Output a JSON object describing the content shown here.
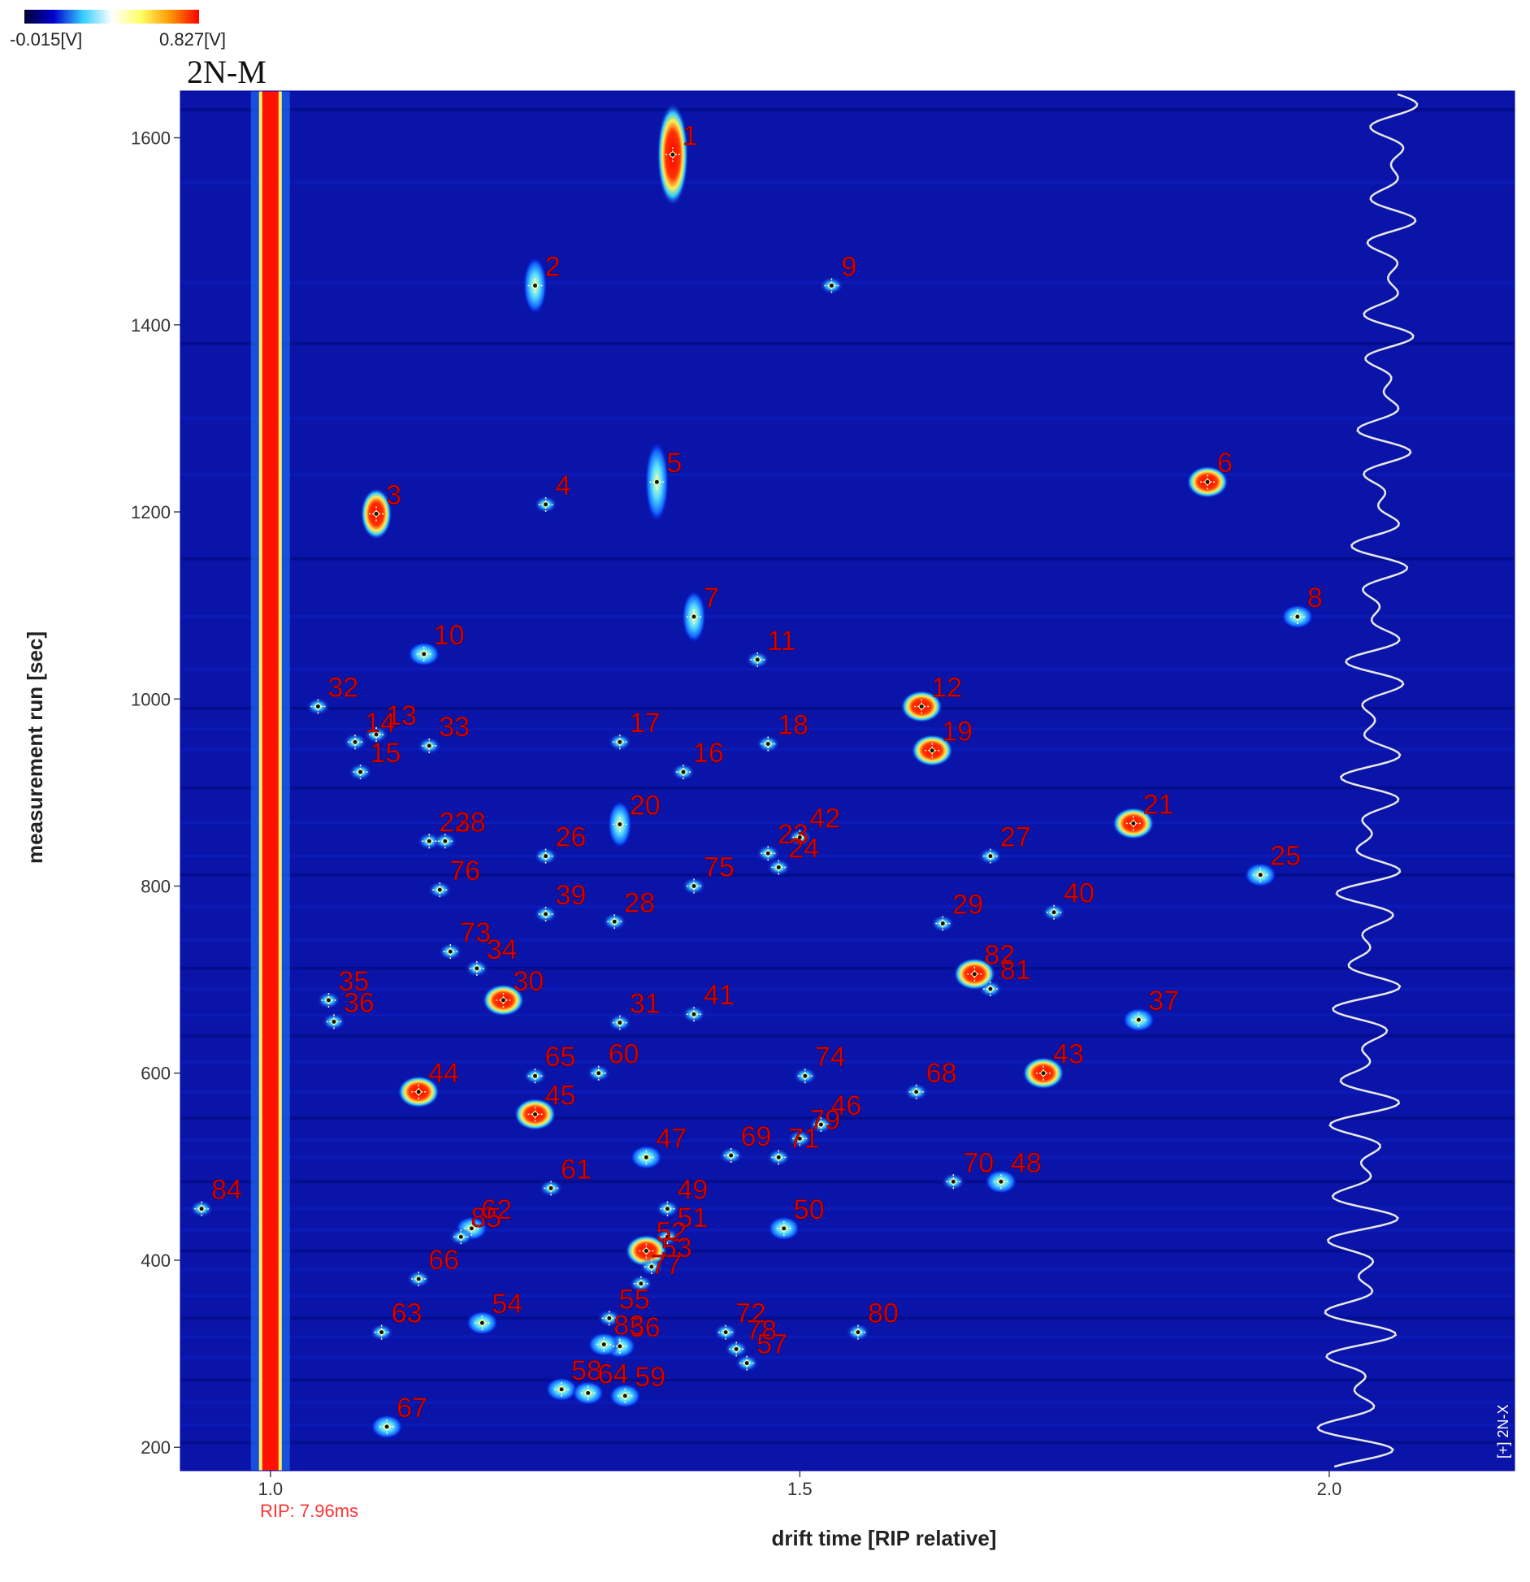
{
  "chart_data": {
    "type": "heatmap",
    "panel_label": "2N-M",
    "colorbar": {
      "min_label": "-0.015[V]",
      "max_label": "0.827[V]",
      "colors": [
        "#000033",
        "#0000cc",
        "#33ccff",
        "#ffffff",
        "#ffff66",
        "#ff9900",
        "#ff0000"
      ]
    },
    "xlabel": "drift time [RIP relative]",
    "ylabel": "measurement run [sec]",
    "rip_label": "RIP: 7.96ms",
    "spectrum_label": "[+] 2N-X",
    "xlim": [
      0.915,
      2.175
    ],
    "ylim": [
      175,
      1650
    ],
    "x_ticks": [
      {
        "value": 1.0,
        "label": "1.0"
      },
      {
        "value": 1.5,
        "label": "1.5"
      },
      {
        "value": 2.0,
        "label": "2.0"
      }
    ],
    "y_ticks": [
      {
        "value": 200,
        "label": "200"
      },
      {
        "value": 400,
        "label": "400"
      },
      {
        "value": 600,
        "label": "600"
      },
      {
        "value": 800,
        "label": "800"
      },
      {
        "value": 1000,
        "label": "1000"
      },
      {
        "value": 1200,
        "label": "1200"
      },
      {
        "value": 1400,
        "label": "1400"
      },
      {
        "value": 1600,
        "label": "1600"
      }
    ],
    "peaks": [
      {
        "id": "1",
        "x": 1.38,
        "y": 1582
      },
      {
        "id": "2",
        "x": 1.25,
        "y": 1442
      },
      {
        "id": "3",
        "x": 1.1,
        "y": 1198
      },
      {
        "id": "4",
        "x": 1.26,
        "y": 1208
      },
      {
        "id": "5",
        "x": 1.365,
        "y": 1232
      },
      {
        "id": "6",
        "x": 1.885,
        "y": 1232
      },
      {
        "id": "7",
        "x": 1.4,
        "y": 1088
      },
      {
        "id": "8",
        "x": 1.97,
        "y": 1088
      },
      {
        "id": "9",
        "x": 1.53,
        "y": 1442
      },
      {
        "id": "10",
        "x": 1.145,
        "y": 1048
      },
      {
        "id": "11",
        "x": 1.46,
        "y": 1042
      },
      {
        "id": "12",
        "x": 1.615,
        "y": 992
      },
      {
        "id": "13",
        "x": 1.1,
        "y": 962
      },
      {
        "id": "14",
        "x": 1.08,
        "y": 954
      },
      {
        "id": "15",
        "x": 1.085,
        "y": 922
      },
      {
        "id": "16",
        "x": 1.39,
        "y": 922
      },
      {
        "id": "17",
        "x": 1.33,
        "y": 954
      },
      {
        "id": "18",
        "x": 1.47,
        "y": 952
      },
      {
        "id": "19",
        "x": 1.625,
        "y": 945
      },
      {
        "id": "20",
        "x": 1.33,
        "y": 866
      },
      {
        "id": "21",
        "x": 1.815,
        "y": 867
      },
      {
        "id": "22",
        "x": 1.15,
        "y": 848
      },
      {
        "id": "23",
        "x": 1.47,
        "y": 835
      },
      {
        "id": "24",
        "x": 1.48,
        "y": 820
      },
      {
        "id": "25",
        "x": 1.935,
        "y": 812
      },
      {
        "id": "26",
        "x": 1.26,
        "y": 832
      },
      {
        "id": "27",
        "x": 1.68,
        "y": 832
      },
      {
        "id": "28",
        "x": 1.325,
        "y": 762
      },
      {
        "id": "29",
        "x": 1.635,
        "y": 760
      },
      {
        "id": "30",
        "x": 1.22,
        "y": 678
      },
      {
        "id": "31",
        "x": 1.33,
        "y": 654
      },
      {
        "id": "32",
        "x": 1.045,
        "y": 992
      },
      {
        "id": "33",
        "x": 1.15,
        "y": 950
      },
      {
        "id": "34",
        "x": 1.195,
        "y": 712
      },
      {
        "id": "35",
        "x": 1.055,
        "y": 678
      },
      {
        "id": "36",
        "x": 1.06,
        "y": 655
      },
      {
        "id": "37",
        "x": 1.82,
        "y": 657
      },
      {
        "id": "38",
        "x": 1.165,
        "y": 848
      },
      {
        "id": "39",
        "x": 1.26,
        "y": 770
      },
      {
        "id": "40",
        "x": 1.74,
        "y": 772
      },
      {
        "id": "41",
        "x": 1.4,
        "y": 663
      },
      {
        "id": "42",
        "x": 1.5,
        "y": 852
      },
      {
        "id": "43",
        "x": 1.73,
        "y": 600
      },
      {
        "id": "44",
        "x": 1.14,
        "y": 580
      },
      {
        "id": "45",
        "x": 1.25,
        "y": 556
      },
      {
        "id": "46",
        "x": 1.52,
        "y": 545
      },
      {
        "id": "47",
        "x": 1.355,
        "y": 510
      },
      {
        "id": "48",
        "x": 1.69,
        "y": 484
      },
      {
        "id": "49",
        "x": 1.375,
        "y": 455
      },
      {
        "id": "50",
        "x": 1.485,
        "y": 434
      },
      {
        "id": "51",
        "x": 1.375,
        "y": 425
      },
      {
        "id": "52",
        "x": 1.355,
        "y": 410
      },
      {
        "id": "53",
        "x": 1.36,
        "y": 393
      },
      {
        "id": "54",
        "x": 1.2,
        "y": 333
      },
      {
        "id": "55",
        "x": 1.32,
        "y": 338
      },
      {
        "id": "56",
        "x": 1.33,
        "y": 308
      },
      {
        "id": "57",
        "x": 1.45,
        "y": 290
      },
      {
        "id": "58",
        "x": 1.275,
        "y": 262
      },
      {
        "id": "59",
        "x": 1.335,
        "y": 255
      },
      {
        "id": "60",
        "x": 1.31,
        "y": 600
      },
      {
        "id": "61",
        "x": 1.265,
        "y": 477
      },
      {
        "id": "62",
        "x": 1.19,
        "y": 434
      },
      {
        "id": "63",
        "x": 1.105,
        "y": 323
      },
      {
        "id": "64",
        "x": 1.3,
        "y": 258
      },
      {
        "id": "65",
        "x": 1.25,
        "y": 597
      },
      {
        "id": "66",
        "x": 1.14,
        "y": 380
      },
      {
        "id": "67",
        "x": 1.11,
        "y": 222
      },
      {
        "id": "68",
        "x": 1.61,
        "y": 580
      },
      {
        "id": "69",
        "x": 1.435,
        "y": 512
      },
      {
        "id": "70",
        "x": 1.645,
        "y": 484
      },
      {
        "id": "71",
        "x": 1.48,
        "y": 510
      },
      {
        "id": "72",
        "x": 1.43,
        "y": 323
      },
      {
        "id": "73",
        "x": 1.17,
        "y": 730
      },
      {
        "id": "74",
        "x": 1.505,
        "y": 597
      },
      {
        "id": "75",
        "x": 1.4,
        "y": 800
      },
      {
        "id": "76",
        "x": 1.16,
        "y": 796
      },
      {
        "id": "77",
        "x": 1.35,
        "y": 375
      },
      {
        "id": "78",
        "x": 1.44,
        "y": 305
      },
      {
        "id": "79",
        "x": 1.5,
        "y": 530
      },
      {
        "id": "80",
        "x": 1.555,
        "y": 323
      },
      {
        "id": "81",
        "x": 1.68,
        "y": 690
      },
      {
        "id": "82",
        "x": 1.665,
        "y": 706
      },
      {
        "id": "83",
        "x": 1.315,
        "y": 310
      },
      {
        "id": "84",
        "x": 0.935,
        "y": 455
      },
      {
        "id": "85",
        "x": 1.18,
        "y": 425
      }
    ]
  }
}
